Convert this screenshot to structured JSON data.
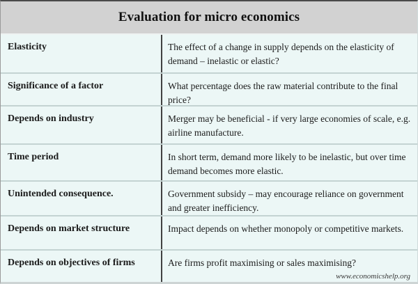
{
  "title": "Evaluation for micro economics",
  "watermark": "www.economicshelp.org",
  "colors": {
    "title_bg": "#d2d2d2",
    "row_bg": "#ecf7f6",
    "separator": "#c3d3d2",
    "divider": "#414141",
    "text": "#1b1b1b"
  },
  "table": {
    "rows": [
      {
        "label": "Elasticity",
        "description": "The effect of a change in supply depends on the elasticity of demand – inelastic or elastic?"
      },
      {
        "label": "Significance of a factor",
        "description": "What percentage does the raw material contribute to the final price?"
      },
      {
        "label": "Depends on industry",
        "description": "Merger may be beneficial - if very large economies of scale, e.g. airline manufacture."
      },
      {
        "label": "Time period",
        "description": "In short term, demand more likely to be inelastic, but over time demand becomes more elastic."
      },
      {
        "label": "Unintended consequence.",
        "description": "Government subsidy – may encourage reliance on government and greater inefficiency."
      },
      {
        "label": "Depends on market structure",
        "description": "Impact depends on whether monopoly or competitive markets."
      },
      {
        "label": "Depends on objectives of firms",
        "description": "Are firms profit maximising or sales maximising?"
      }
    ]
  }
}
